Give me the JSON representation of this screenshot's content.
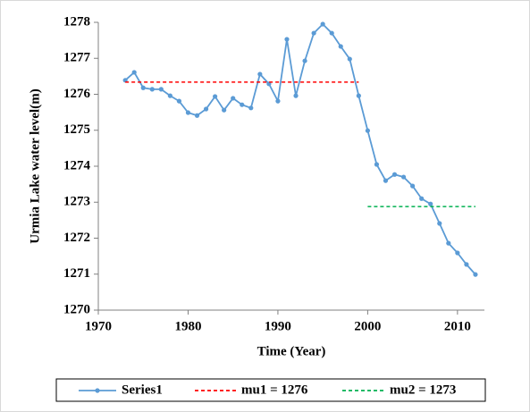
{
  "chart_data": {
    "type": "line",
    "xlabel": "Time (Year)",
    "ylabel": "Urmia  Lake water level(m)",
    "xlim": [
      1970,
      2013
    ],
    "xticks": [
      1970,
      1980,
      1990,
      2000,
      2010
    ],
    "ylim": [
      1270,
      1278
    ],
    "yticks": [
      1270,
      1271,
      1272,
      1273,
      1274,
      1275,
      1276,
      1277,
      1278
    ],
    "legend": "bottom",
    "series": [
      {
        "name": "Series1",
        "color": "#5b9bd5",
        "markers": true,
        "dashed": false,
        "x": [
          1973,
          1974,
          1975,
          1976,
          1977,
          1978,
          1979,
          1980,
          1981,
          1982,
          1983,
          1984,
          1985,
          1986,
          1987,
          1988,
          1989,
          1990,
          1991,
          1992,
          1993,
          1994,
          1995,
          1996,
          1997,
          1998,
          1999,
          2000,
          2001,
          2002,
          2003,
          2004,
          2005,
          2006,
          2007,
          2008,
          2009,
          2010,
          2011,
          2012
        ],
        "values": [
          1276.39,
          1276.61,
          1276.18,
          1276.14,
          1276.14,
          1275.96,
          1275.81,
          1275.49,
          1275.41,
          1275.59,
          1275.94,
          1275.56,
          1275.89,
          1275.71,
          1275.62,
          1276.56,
          1276.29,
          1275.81,
          1277.53,
          1275.96,
          1276.93,
          1277.7,
          1277.95,
          1277.7,
          1277.33,
          1276.98,
          1275.96,
          1274.99,
          1274.05,
          1273.6,
          1273.77,
          1273.7,
          1273.45,
          1273.1,
          1272.95,
          1272.41,
          1271.86,
          1271.59,
          1271.27,
          1270.99
        ]
      },
      {
        "name": "mu1 = 1276",
        "color": "#ff0000",
        "markers": false,
        "dashed": true,
        "x": [
          1973,
          1999
        ],
        "values": [
          1276.34,
          1276.34
        ]
      },
      {
        "name": "mu2 = 1273",
        "color": "#00b050",
        "markers": false,
        "dashed": true,
        "x": [
          2000,
          2012
        ],
        "values": [
          1272.88,
          1272.88
        ]
      }
    ]
  }
}
